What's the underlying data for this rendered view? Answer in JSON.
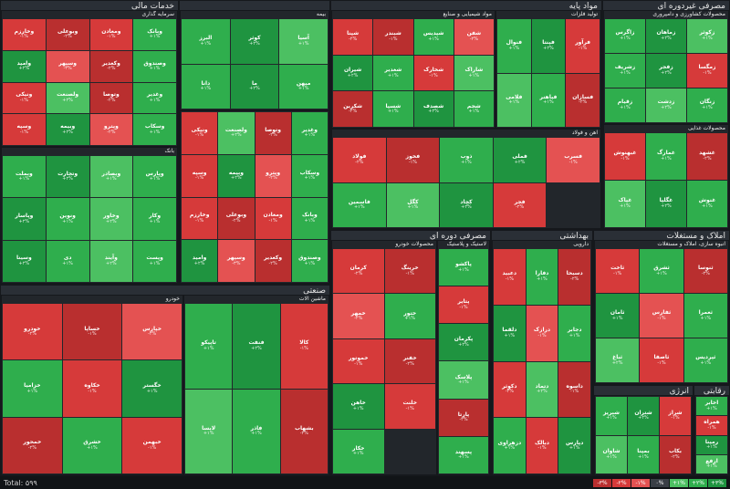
{
  "sectors": [
    {
      "id": "financial",
      "title": "خدمات مالی",
      "subs": [
        {
          "title": "سرمایه گذاری",
          "tiles": [
            {
              "n": "وخارزم",
              "c": "-۱%",
              "s": "r1"
            },
            {
              "n": "وبوعلی",
              "c": "-۲%",
              "s": "r2"
            },
            {
              "n": "ومعادن",
              "c": "-۱%",
              "s": "r1"
            },
            {
              "n": "وبانک",
              "c": "+۱%",
              "s": "g1"
            },
            {
              "n": "وامید",
              "c": "+۲%",
              "s": "g2"
            },
            {
              "n": "وسپهر",
              "c": "-۳%",
              "s": "r3"
            },
            {
              "n": "وکغدیر",
              "c": "-۲%",
              "s": "r2"
            },
            {
              "n": "وصندوق",
              "c": "+۱%",
              "s": "g1"
            },
            {
              "n": "ونیکی",
              "c": "-۱%",
              "s": "r1"
            },
            {
              "n": "ولصنعت",
              "c": "+۲%",
              "s": "g3"
            },
            {
              "n": "وتوصا",
              "c": "-۲%",
              "s": "r2"
            },
            {
              "n": "وغدیر",
              "c": "+۱%",
              "s": "g1"
            },
            {
              "n": "وسپه",
              "c": "-۱%",
              "s": "r1"
            },
            {
              "n": "وبیمه",
              "c": "+۲%",
              "s": "g2"
            },
            {
              "n": "وپترو",
              "c": "-۲%",
              "s": "r3"
            },
            {
              "n": "وسکاب",
              "c": "+۱%",
              "s": "g1"
            }
          ]
        },
        {
          "title": "بانک",
          "tiles": [
            {
              "n": "وبملت",
              "c": "+۱%",
              "s": "g1"
            },
            {
              "n": "وتجارت",
              "c": "+۲%",
              "s": "g2"
            },
            {
              "n": "وبصادر",
              "c": "+۱%",
              "s": "g3"
            },
            {
              "n": "وپارس",
              "c": "+۱%",
              "s": "g1"
            },
            {
              "n": "وپاسار",
              "c": "+۲%",
              "s": "g2"
            },
            {
              "n": "ونوین",
              "c": "+۱%",
              "s": "g1"
            },
            {
              "n": "وخاور",
              "c": "+۲%",
              "s": "g3"
            },
            {
              "n": "وکار",
              "c": "+۱%",
              "s": "g1"
            },
            {
              "n": "وسینا",
              "c": "+۲%",
              "s": "g2"
            },
            {
              "n": "دی",
              "c": "+۱%",
              "s": "g1"
            },
            {
              "n": "وآیند",
              "c": "+۲%",
              "s": "g3"
            },
            {
              "n": "وپست",
              "c": "+۱%",
              "s": "g1"
            }
          ]
        },
        {
          "title": "بیمه",
          "tiles": [
            {
              "n": "البرز",
              "c": "+۱%",
              "s": "g1"
            },
            {
              "n": "کوثر",
              "c": "+۲%",
              "s": "g2"
            },
            {
              "n": "آسیا",
              "c": "+۱%",
              "s": "g3"
            },
            {
              "n": "دانا",
              "c": "+۱%",
              "s": "g1"
            },
            {
              "n": "ما",
              "c": "+۲%",
              "s": "g2"
            },
            {
              "n": "میهن",
              "c": "+۱%",
              "s": "g1"
            }
          ]
        }
      ]
    },
    {
      "id": "materials",
      "title": "مواد پایه",
      "subs": [
        {
          "title": "مواد شیمیایی و صنایع",
          "tiles": [
            {
              "n": "شپنا",
              "c": "-۲%",
              "s": "r1"
            },
            {
              "n": "شبندر",
              "c": "-۱%",
              "s": "r2"
            },
            {
              "n": "شپدیس",
              "c": "+۱%",
              "s": "g1"
            },
            {
              "n": "شفن",
              "c": "-۲%",
              "s": "r3"
            },
            {
              "n": "شیران",
              "c": "+۲%",
              "s": "g2"
            },
            {
              "n": "شغدیر",
              "c": "+۱%",
              "s": "g1"
            },
            {
              "n": "شخارک",
              "c": "-۱%",
              "s": "r1"
            },
            {
              "n": "شاراک",
              "c": "+۱%",
              "s": "g3"
            },
            {
              "n": "شکربن",
              "c": "-۲%",
              "s": "r2"
            },
            {
              "n": "شسپا",
              "c": "+۱%",
              "s": "g1"
            },
            {
              "n": "شصدف",
              "c": "+۲%",
              "s": "g2"
            },
            {
              "n": "شجم",
              "c": "+۱%",
              "s": "g1"
            }
          ]
        },
        {
          "title": "آهن و فولاد",
          "tiles": [
            {
              "n": "فولاد",
              "c": "-۲%",
              "s": "r1"
            },
            {
              "n": "فخوز",
              "c": "-۱%",
              "s": "r2"
            },
            {
              "n": "ذوب",
              "c": "+۱%",
              "s": "g1"
            },
            {
              "n": "فملی",
              "c": "+۲%",
              "s": "g2"
            },
            {
              "n": "فسرب",
              "c": "-۱%",
              "s": "r3"
            },
            {
              "n": "فاسمین",
              "c": "+۱%",
              "s": "g1"
            },
            {
              "n": "کگل",
              "c": "+۱%",
              "s": "g3"
            },
            {
              "n": "کچاد",
              "c": "+۲%",
              "s": "g2"
            },
            {
              "n": "فجر",
              "c": "-۲%",
              "s": "r1"
            }
          ]
        },
        {
          "title": "تولید فلزات",
          "tiles": [
            {
              "n": "فنوال",
              "c": "+۱%",
              "s": "g1"
            },
            {
              "n": "فپنتا",
              "c": "+۲%",
              "s": "g2"
            },
            {
              "n": "فرآور",
              "c": "-۱%",
              "s": "r1"
            },
            {
              "n": "فلامی",
              "c": "+۱%",
              "s": "g3"
            },
            {
              "n": "فباهنر",
              "c": "+۱%",
              "s": "g1"
            },
            {
              "n": "فسازان",
              "c": "-۲%",
              "s": "r2"
            }
          ]
        }
      ]
    },
    {
      "id": "consumer",
      "title": "مصرفی غیردوره ای",
      "subs": [
        {
          "title": "محصولات کشاورزی و دامپروری",
          "tiles": [
            {
              "n": "زاگرس",
              "c": "+۱%",
              "s": "g1"
            },
            {
              "n": "زماهان",
              "c": "+۲%",
              "s": "g2"
            },
            {
              "n": "زکوثر",
              "c": "+۱%",
              "s": "g3"
            },
            {
              "n": "زشریف",
              "c": "+۱%",
              "s": "g1"
            },
            {
              "n": "زفجر",
              "c": "+۲%",
              "s": "g2"
            },
            {
              "n": "زمگسا",
              "c": "-۱%",
              "s": "r1"
            },
            {
              "n": "زقیام",
              "c": "+۱%",
              "s": "g1"
            },
            {
              "n": "زدشت",
              "c": "+۲%",
              "s": "g3"
            },
            {
              "n": "زنگان",
              "c": "+۱%",
              "s": "g1"
            }
          ]
        },
        {
          "title": "محصولات غذایی",
          "tiles": [
            {
              "n": "غبهنوش",
              "c": "-۱%",
              "s": "r1"
            },
            {
              "n": "غمارگ",
              "c": "+۱%",
              "s": "g1"
            },
            {
              "n": "غشهد",
              "c": "-۲%",
              "s": "r2"
            },
            {
              "n": "غپاک",
              "c": "+۱%",
              "s": "g3"
            },
            {
              "n": "غگلپا",
              "c": "+۲%",
              "s": "g2"
            },
            {
              "n": "غنوش",
              "c": "+۱%",
              "s": "g1"
            }
          ]
        }
      ]
    },
    {
      "id": "industrial",
      "title": "صنعتی",
      "subs": [
        {
          "title": "خودرو",
          "tiles": [
            {
              "n": "خودرو",
              "c": "-۲%",
              "s": "r1"
            },
            {
              "n": "خساپا",
              "c": "-۱%",
              "s": "r2"
            },
            {
              "n": "خپارس",
              "c": "-۲%",
              "s": "r3"
            },
            {
              "n": "خزامیا",
              "c": "+۱%",
              "s": "g1"
            },
            {
              "n": "خکاوه",
              "c": "-۱%",
              "s": "r1"
            },
            {
              "n": "خگستر",
              "c": "+۱%",
              "s": "g2"
            },
            {
              "n": "خمحور",
              "c": "-۲%",
              "s": "r2"
            },
            {
              "n": "خشرق",
              "c": "+۱%",
              "s": "g1"
            },
            {
              "n": "خبهمن",
              "c": "-۱%",
              "s": "r1"
            }
          ]
        },
        {
          "title": "ماشین آلات",
          "tiles": [
            {
              "n": "تاپیکو",
              "c": "+۱%",
              "s": "g1"
            },
            {
              "n": "فنفت",
              "c": "+۲%",
              "s": "g2"
            },
            {
              "n": "کالا",
              "c": "-۱%",
              "s": "r1"
            },
            {
              "n": "لابسا",
              "c": "+۱%",
              "s": "g3"
            },
            {
              "n": "فاذر",
              "c": "+۱%",
              "s": "g1"
            },
            {
              "n": "بشهاب",
              "c": "-۲%",
              "s": "r2"
            }
          ]
        }
      ]
    },
    {
      "id": "consumer_cyclical",
      "title": "مصرفی دوره ای",
      "subs": [
        {
          "title": "محصولات خودرو",
          "tiles": [
            {
              "n": "کرمان",
              "c": "-۲%",
              "s": "r1"
            },
            {
              "n": "خرینگ",
              "c": "-۱%",
              "s": "r2"
            },
            {
              "n": "خمهر",
              "c": "-۲%",
              "s": "r3"
            },
            {
              "n": "ختور",
              "c": "+۱%",
              "s": "g1"
            },
            {
              "n": "خموتور",
              "c": "-۱%",
              "s": "r1"
            },
            {
              "n": "خفنر",
              "c": "-۲%",
              "s": "r2"
            },
            {
              "n": "خاهن",
              "c": "+۱%",
              "s": "g2"
            },
            {
              "n": "خلنت",
              "c": "-۱%",
              "s": "r1"
            },
            {
              "n": "خکار",
              "c": "+۱%",
              "s": "g1"
            }
          ]
        },
        {
          "title": "لاستیک و پلاستیک",
          "tiles": [
            {
              "n": "پاکشو",
              "c": "+۱%",
              "s": "g1"
            },
            {
              "n": "پتایر",
              "c": "-۱%",
              "s": "r1"
            },
            {
              "n": "پکرمان",
              "c": "+۲%",
              "s": "g2"
            },
            {
              "n": "پلاسک",
              "c": "+۱%",
              "s": "g3"
            },
            {
              "n": "پارتا",
              "c": "-۲%",
              "s": "r2"
            },
            {
              "n": "پسهند",
              "c": "+۱%",
              "s": "g1"
            }
          ]
        }
      ]
    },
    {
      "id": "health",
      "title": "بهداشتی",
      "subs": [
        {
          "title": "دارویی",
          "tiles": [
            {
              "n": "دعبید",
              "c": "-۱%",
              "s": "r1"
            },
            {
              "n": "دفارا",
              "c": "+۱%",
              "s": "g1"
            },
            {
              "n": "دسبحا",
              "c": "-۲%",
              "s": "r2"
            },
            {
              "n": "دلقما",
              "c": "+۱%",
              "s": "g2"
            },
            {
              "n": "درازک",
              "c": "-۱%",
              "s": "r3"
            },
            {
              "n": "دجابر",
              "c": "+۱%",
              "s": "g1"
            },
            {
              "n": "دکوثر",
              "c": "-۲%",
              "s": "r1"
            },
            {
              "n": "دتماد",
              "c": "+۲%",
              "s": "g3"
            },
            {
              "n": "داسوه",
              "c": "-۱%",
              "s": "r2"
            },
            {
              "n": "دزهراوی",
              "c": "+۱%",
              "s": "g1"
            },
            {
              "n": "دبالک",
              "c": "-۱%",
              "s": "r1"
            },
            {
              "n": "دپارس",
              "c": "+۱%",
              "s": "g2"
            }
          ]
        }
      ]
    },
    {
      "id": "realestate",
      "title": "املاک و مستغلات",
      "subs": [
        {
          "title": "انبوه سازی، املاک و مستغلات",
          "tiles": [
            {
              "n": "ثاخت",
              "c": "-۱%",
              "s": "r1"
            },
            {
              "n": "ثشرق",
              "c": "+۱%",
              "s": "g1"
            },
            {
              "n": "ثنوسا",
              "c": "-۲%",
              "s": "r2"
            },
            {
              "n": "ثامان",
              "c": "+۱%",
              "s": "g2"
            },
            {
              "n": "ثفارس",
              "c": "-۱%",
              "s": "r3"
            },
            {
              "n": "ثعمرا",
              "c": "+۱%",
              "s": "g1"
            },
            {
              "n": "ثباغ",
              "c": "+۲%",
              "s": "g3"
            },
            {
              "n": "ثاصفا",
              "c": "-۱%",
              "s": "r1"
            },
            {
              "n": "ثپردیس",
              "c": "+۱%",
              "s": "g1"
            }
          ]
        }
      ]
    },
    {
      "id": "energy",
      "title": "انرژی",
      "subs": [
        {
          "title": "",
          "tiles": [
            {
              "n": "شبریز",
              "c": "+۱%",
              "s": "g1"
            },
            {
              "n": "شتران",
              "c": "+۲%",
              "s": "g2"
            },
            {
              "n": "شراز",
              "c": "-۱%",
              "s": "r1"
            },
            {
              "n": "شاوان",
              "c": "+۱%",
              "s": "g3"
            },
            {
              "n": "بمپنا",
              "c": "+۱%",
              "s": "g1"
            },
            {
              "n": "بکاب",
              "c": "-۲%",
              "s": "r2"
            }
          ]
        }
      ]
    },
    {
      "id": "comm",
      "title": "رقابتی",
      "subs": [
        {
          "title": "",
          "tiles": [
            {
              "n": "اخابر",
              "c": "+۱%",
              "s": "g1"
            },
            {
              "n": "همراه",
              "c": "-۱%",
              "s": "r1"
            },
            {
              "n": "رمپنا",
              "c": "+۱%",
              "s": "g2"
            },
            {
              "n": "ارفع",
              "c": "+۱%",
              "s": "g3"
            }
          ]
        }
      ]
    }
  ],
  "footer": {
    "total": "Total: ۵۹۹",
    "legend": [
      {
        "label": "-۳%",
        "color": "#b92f2f"
      },
      {
        "label": "-۲%",
        "color": "#d63a3a"
      },
      {
        "label": "-۱%",
        "color": "#e45252"
      },
      {
        "label": "۰%",
        "color": "#3a3f46"
      },
      {
        "label": "+۱%",
        "color": "#4cc062"
      },
      {
        "label": "+۲%",
        "color": "#2fae4d"
      },
      {
        "label": "+۳%",
        "color": "#1f9440"
      }
    ]
  }
}
